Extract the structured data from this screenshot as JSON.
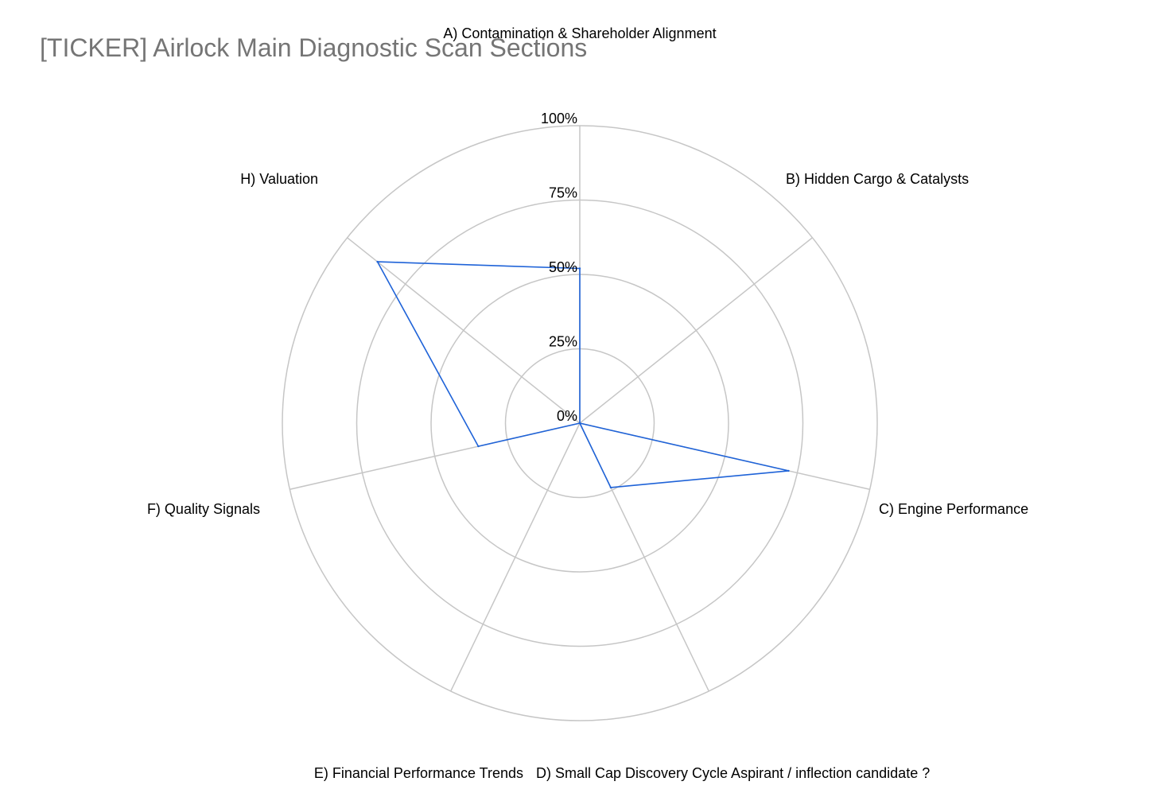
{
  "chart_data": {
    "type": "radar",
    "title": "[TICKER] Airlock Main Diagnostic Scan Sections",
    "categories": [
      "A) Contamination & Shareholder Alignment",
      "B) Hidden Cargo & Catalysts",
      "C) Engine Performance",
      "D) Small Cap Discovery Cycle Aspirant / inflection candidate ?",
      "E) Financial Performance Trends",
      "F) Quality Signals",
      "H) Valuation"
    ],
    "series": [
      {
        "values": [
          52,
          0,
          72,
          24,
          0,
          35,
          87
        ]
      }
    ],
    "range": [
      0,
      100
    ],
    "ticks": [
      "0%",
      "25%",
      "50%",
      "75%",
      "100%"
    ],
    "grid": true,
    "series_color": "#1f63d8",
    "grid_color": "#c6c6c6"
  }
}
